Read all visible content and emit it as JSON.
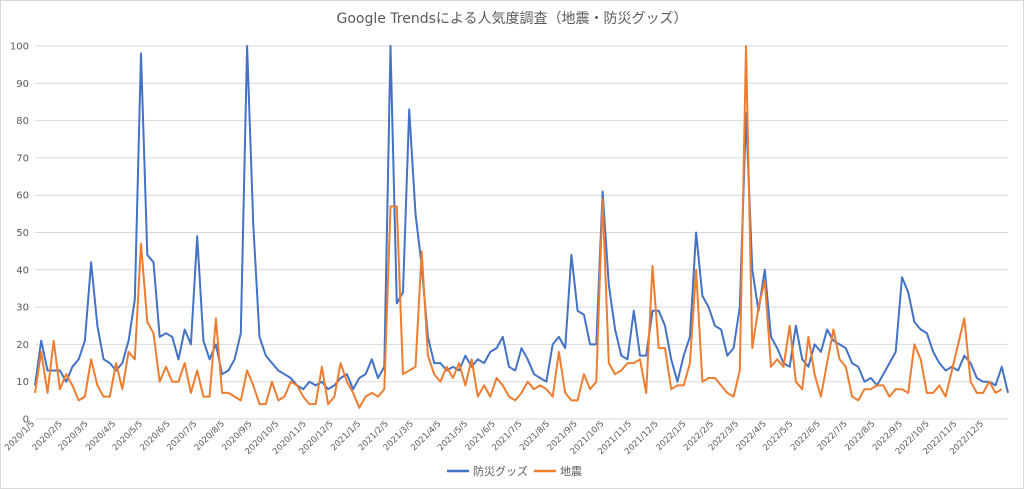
{
  "chart_data": {
    "type": "line",
    "title": "Google Trendsによる人気度調査（地震・防災グッズ）",
    "xlabel": "",
    "ylabel": "",
    "ylim": [
      0,
      100
    ],
    "yticks": [
      0,
      10,
      20,
      30,
      40,
      50,
      60,
      70,
      80,
      90,
      100
    ],
    "grid": true,
    "legend": "bottom",
    "x_start": "2020/1/5",
    "x_interval": "weekly",
    "xticks": [
      "2020/1/5",
      "2020/2/5",
      "2020/3/5",
      "2020/4/5",
      "2020/5/5",
      "2020/6/5",
      "2020/7/5",
      "2020/8/5",
      "2020/9/5",
      "2020/10/5",
      "2020/11/5",
      "2020/12/5",
      "2021/1/5",
      "2021/2/5",
      "2021/3/5",
      "2021/4/5",
      "2021/5/5",
      "2021/6/5",
      "2021/7/5",
      "2021/8/5",
      "2021/9/5",
      "2021/10/5",
      "2021/11/5",
      "2021/12/5",
      "2022/1/5",
      "2022/2/5",
      "2022/3/5",
      "2022/4/5",
      "2022/5/5",
      "2022/6/5",
      "2022/7/5",
      "2022/8/5",
      "2022/9/5",
      "2022/10/5",
      "2022/11/5",
      "2022/12/5"
    ],
    "series": [
      {
        "name": "防災グッズ",
        "color": "#4472C4",
        "values": [
          9,
          21,
          13,
          13,
          13,
          10,
          14,
          16,
          21,
          42,
          25,
          16,
          15,
          13,
          15,
          21,
          32,
          98,
          44,
          42,
          22,
          23,
          22,
          16,
          24,
          20,
          49,
          21,
          16,
          20,
          12,
          13,
          16,
          23,
          100,
          52,
          22,
          17,
          15,
          13,
          12,
          11,
          9,
          8,
          10,
          9,
          10,
          8,
          9,
          11,
          12,
          8,
          11,
          12,
          16,
          11,
          14,
          100,
          31,
          34,
          83,
          55,
          41,
          22,
          15,
          15,
          13,
          14,
          13,
          17,
          14,
          16,
          15,
          18,
          19,
          22,
          14,
          13,
          19,
          16,
          12,
          11,
          10,
          20,
          22,
          19,
          44,
          29,
          28,
          20,
          20,
          61,
          36,
          24,
          17,
          16,
          29,
          17,
          17,
          29,
          29,
          25,
          16,
          10,
          17,
          22,
          50,
          33,
          30,
          25,
          24,
          17,
          19,
          30,
          82,
          40,
          29,
          40,
          22,
          19,
          15,
          14,
          25,
          16,
          14,
          20,
          18,
          24,
          21,
          20,
          19,
          15,
          14,
          10,
          11,
          9,
          12,
          15,
          18,
          38,
          34,
          26,
          24,
          23,
          18,
          15,
          13,
          14,
          13,
          17,
          15,
          11,
          10,
          10,
          9,
          14,
          7
        ],
        "annotations": []
      },
      {
        "name": "地震",
        "color": "#ED7D31",
        "values": [
          7,
          18,
          7,
          21,
          8,
          12,
          9,
          5,
          6,
          16,
          9,
          6,
          6,
          15,
          8,
          18,
          16,
          47,
          26,
          23,
          10,
          14,
          10,
          10,
          15,
          7,
          13,
          6,
          6,
          27,
          7,
          7,
          6,
          5,
          13,
          9,
          4,
          4,
          10,
          5,
          6,
          10,
          9,
          6,
          4,
          4,
          14,
          4,
          6,
          15,
          10,
          7,
          3,
          6,
          7,
          6,
          8,
          57,
          57,
          12,
          13,
          14,
          45,
          17,
          12,
          10,
          14,
          11,
          15,
          9,
          16,
          6,
          9,
          6,
          11,
          9,
          6,
          5,
          7,
          10,
          8,
          9,
          8,
          6,
          18,
          7,
          5,
          5,
          12,
          8,
          10,
          59,
          15,
          12,
          13,
          15,
          15,
          16,
          7,
          41,
          19,
          19,
          8,
          9,
          9,
          15,
          40,
          10,
          11,
          11,
          9,
          7,
          6,
          13,
          100,
          19,
          30,
          37,
          14,
          16,
          14,
          25,
          10,
          8,
          22,
          12,
          6,
          15,
          24,
          16,
          14,
          6,
          5,
          8,
          8,
          9,
          9,
          6,
          8,
          8,
          7,
          20,
          16,
          7,
          7,
          9,
          6,
          13,
          20,
          27,
          10,
          7,
          7,
          10,
          7,
          8
        ],
        "annotations": []
      }
    ]
  }
}
